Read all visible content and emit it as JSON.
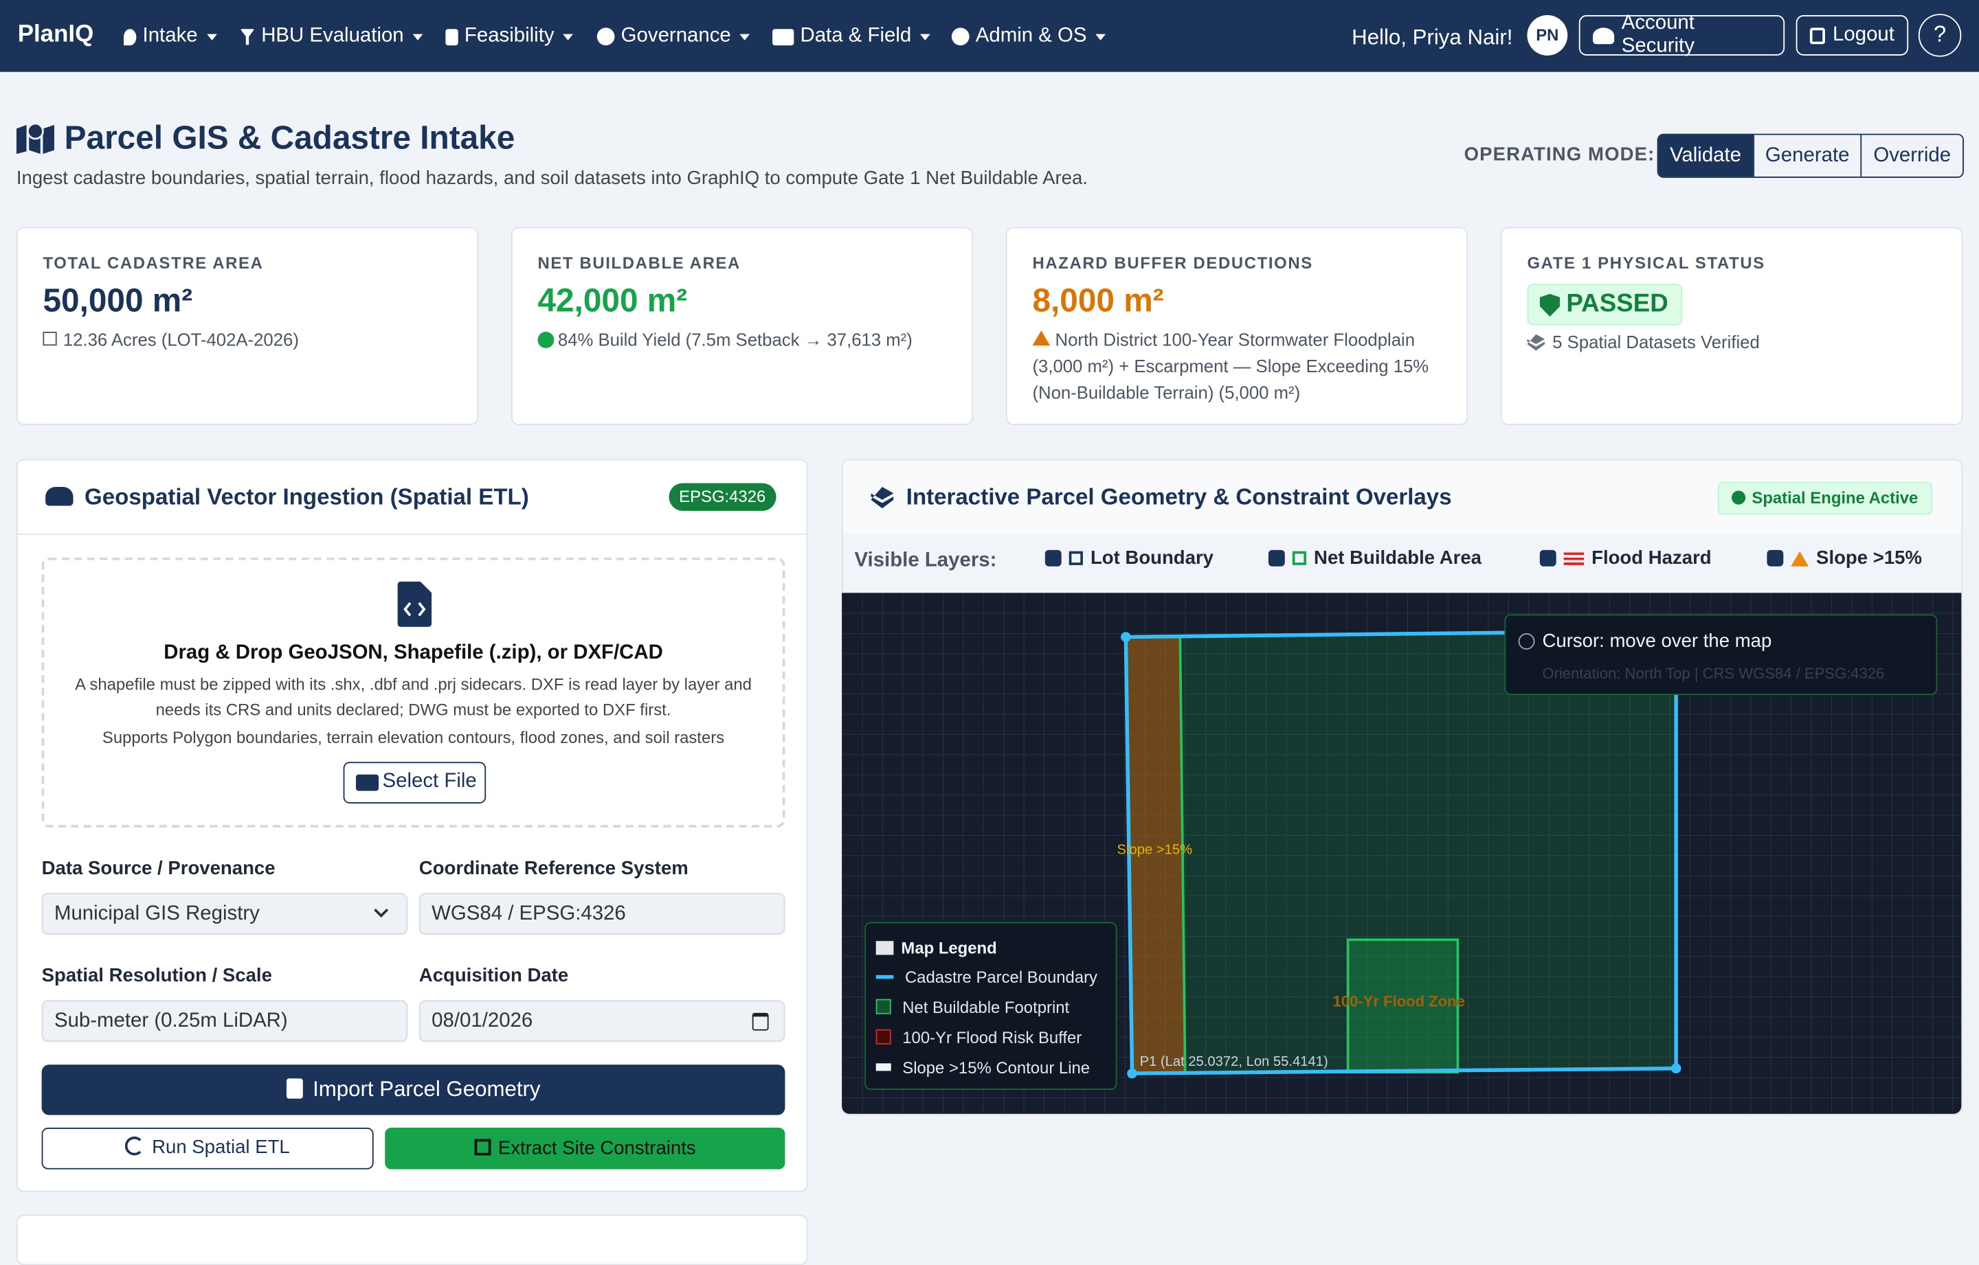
{
  "nav": {
    "brand": "PlanIQ",
    "menus": [
      "Intake",
      "HBU Evaluation",
      "Feasibility",
      "Governance",
      "Data & Field",
      "Admin & OS"
    ],
    "greeting": "Hello, Priya Nair!",
    "avatar": "PN",
    "account_button": "Account Security",
    "logout_button": "Logout",
    "help_button": "?"
  },
  "header": {
    "title": "Parcel GIS & Cadastre Intake",
    "subtitle": "Ingest cadastre boundaries, spatial terrain, flood hazards, and soil datasets into GraphIQ to compute Gate 1 Net Buildable Area.",
    "mode_label": "OPERATING MODE:",
    "modes": [
      "Validate",
      "Generate",
      "Override"
    ],
    "active_mode": 0
  },
  "kpis": [
    {
      "label": "TOTAL CADASTRE AREA",
      "value": "50,000 m²",
      "note": "12.36 Acres (LOT-402A-2026)"
    },
    {
      "label": "NET BUILDABLE AREA",
      "value": "42,000 m²",
      "note": "84% Build Yield (7.5m Setback → 37,613 m²)"
    },
    {
      "label": "HAZARD BUFFER DEDUCTIONS",
      "value": "8,000 m²",
      "note": "North District 100-Year Stormwater Floodplain (3,000 m²) + Escarpment — Slope Exceeding 15% (Non-Buildable Terrain) (5,000 m²)"
    },
    {
      "label": "GATE 1 PHYSICAL STATUS",
      "value": "PASSED",
      "note": "5 Spatial Datasets Verified"
    }
  ],
  "ingestion": {
    "title": "Geospatial Vector Ingestion (Spatial ETL)",
    "badge": "EPSG:4326",
    "drop_title": "Drag & Drop GeoJSON, Shapefile (.zip), or DXF/CAD",
    "drop_text": "A shapefile must be zipped with its .shx, .dbf and .prj sidecars. DXF is read layer by layer and needs its CRS and units declared; DWG must be exported to DXF first.",
    "drop_support": "Supports Polygon boundaries, terrain elevation contours, flood zones, and soil rasters",
    "select_button": "Select File",
    "fields": [
      {
        "label": "Data Source / Provenance",
        "value": "Municipal GIS Registry"
      },
      {
        "label": "Coordinate Reference System",
        "value": "WGS84 / EPSG:4326"
      },
      {
        "label": "Spatial Resolution / Scale",
        "value": "Sub-meter (0.25m LiDAR)"
      },
      {
        "label": "Acquisition Date",
        "value": "08/01/2026"
      }
    ],
    "import_button": "Import Parcel Geometry",
    "run_button": "Run Spatial ETL",
    "extract_button": "Extract Site Constraints"
  },
  "map": {
    "title": "Interactive Parcel Geometry & Constraint Overlays",
    "status": "Spatial Engine Active",
    "layers_label": "Visible Layers:",
    "layers": [
      "Lot Boundary",
      "Net Buildable Area",
      "Flood Hazard",
      "Slope >15%"
    ],
    "cursor": "Cursor: move over the map",
    "orientation": "Orientation: North Top | CRS WGS84 / EPSG:4326",
    "legend_title": "Map Legend",
    "legend": [
      "Cadastre Parcel Boundary",
      "Net Buildable Footprint",
      "100-Yr Flood Risk Buffer",
      "Slope >15% Contour Line"
    ],
    "slope_label": "Slope >15%",
    "flood_label": "100-Yr Flood Zone",
    "point_label": "P1 (Lat 25.0372, Lon 55.4141)"
  }
}
